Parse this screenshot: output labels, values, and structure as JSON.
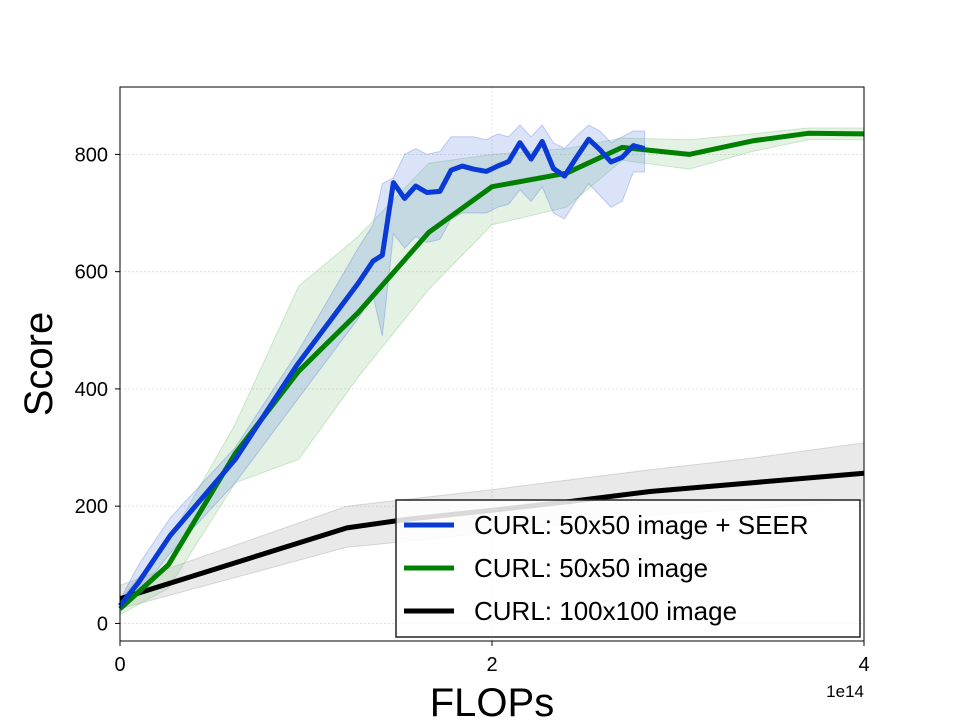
{
  "chart_data": {
    "type": "line",
    "title": "",
    "xlabel": "FLOPs",
    "ylabel": "Score",
    "x_offset_label": "1e14",
    "xlim": [
      0,
      4
    ],
    "ylim": [
      -30,
      915
    ],
    "xticks": [
      0,
      2,
      4
    ],
    "xtick_labels": [
      "0",
      "2",
      "4"
    ],
    "yticks": [
      0,
      200,
      400,
      600,
      800
    ],
    "ytick_labels": [
      "0",
      "200",
      "400",
      "600",
      "800"
    ],
    "grid": true,
    "legend_position": "lower-right",
    "series": [
      {
        "name": "CURL: 50x50 image + SEER",
        "color": "#0a3ad6",
        "band_color": "#5b7fe0",
        "x": [
          0.0,
          0.1,
          0.27,
          0.62,
          0.95,
          1.28,
          1.36,
          1.41,
          1.47,
          1.53,
          1.59,
          1.65,
          1.72,
          1.78,
          1.84,
          1.9,
          1.97,
          2.03,
          2.09,
          2.15,
          2.21,
          2.27,
          2.33,
          2.39,
          2.45,
          2.52,
          2.58,
          2.64,
          2.7,
          2.76,
          2.82
        ],
        "y": [
          30,
          70,
          150,
          280,
          440,
          580,
          618,
          628,
          752,
          725,
          746,
          735,
          737,
          773,
          780,
          775,
          771,
          780,
          788,
          820,
          792,
          822,
          776,
          763,
          793,
          826,
          808,
          787,
          795,
          815,
          810
        ],
        "lower": [
          20,
          50,
          120,
          240,
          380,
          520,
          560,
          490,
          665,
          640,
          660,
          650,
          655,
          690,
          700,
          700,
          700,
          710,
          715,
          740,
          720,
          745,
          700,
          690,
          720,
          750,
          730,
          710,
          720,
          770,
          770
        ],
        "upper": [
          40,
          100,
          180,
          300,
          460,
          640,
          680,
          750,
          760,
          800,
          810,
          800,
          805,
          830,
          830,
          830,
          825,
          835,
          830,
          850,
          830,
          850,
          820,
          810,
          830,
          850,
          840,
          820,
          830,
          840,
          840
        ]
      },
      {
        "name": "CURL: 50x50 image",
        "color": "#008000",
        "band_color": "#7ec27e",
        "x": [
          0.0,
          0.26,
          0.62,
          0.96,
          1.28,
          1.66,
          2.0,
          2.4,
          2.7,
          3.06,
          3.4,
          3.7,
          4.0
        ],
        "y": [
          25,
          100,
          290,
          430,
          530,
          667,
          745,
          768,
          812,
          800,
          823,
          836,
          835
        ],
        "lower": [
          15,
          60,
          240,
          280,
          420,
          570,
          680,
          710,
          790,
          775,
          805,
          825,
          825
        ],
        "upper": [
          40,
          140,
          340,
          575,
          660,
          785,
          800,
          810,
          828,
          825,
          835,
          845,
          845
        ]
      },
      {
        "name": "CURL: 100x100 image",
        "color": "#000000",
        "band_color": "#9a9a9a",
        "x": [
          0.0,
          1.22,
          1.55,
          2.0,
          2.42,
          2.85,
          3.4,
          4.0
        ],
        "y": [
          42,
          163,
          178,
          193,
          208,
          225,
          240,
          256
        ],
        "lower": [
          25,
          130,
          140,
          155,
          170,
          185,
          195,
          210
        ],
        "upper": [
          65,
          200,
          212,
          228,
          245,
          262,
          282,
          308
        ]
      }
    ]
  }
}
